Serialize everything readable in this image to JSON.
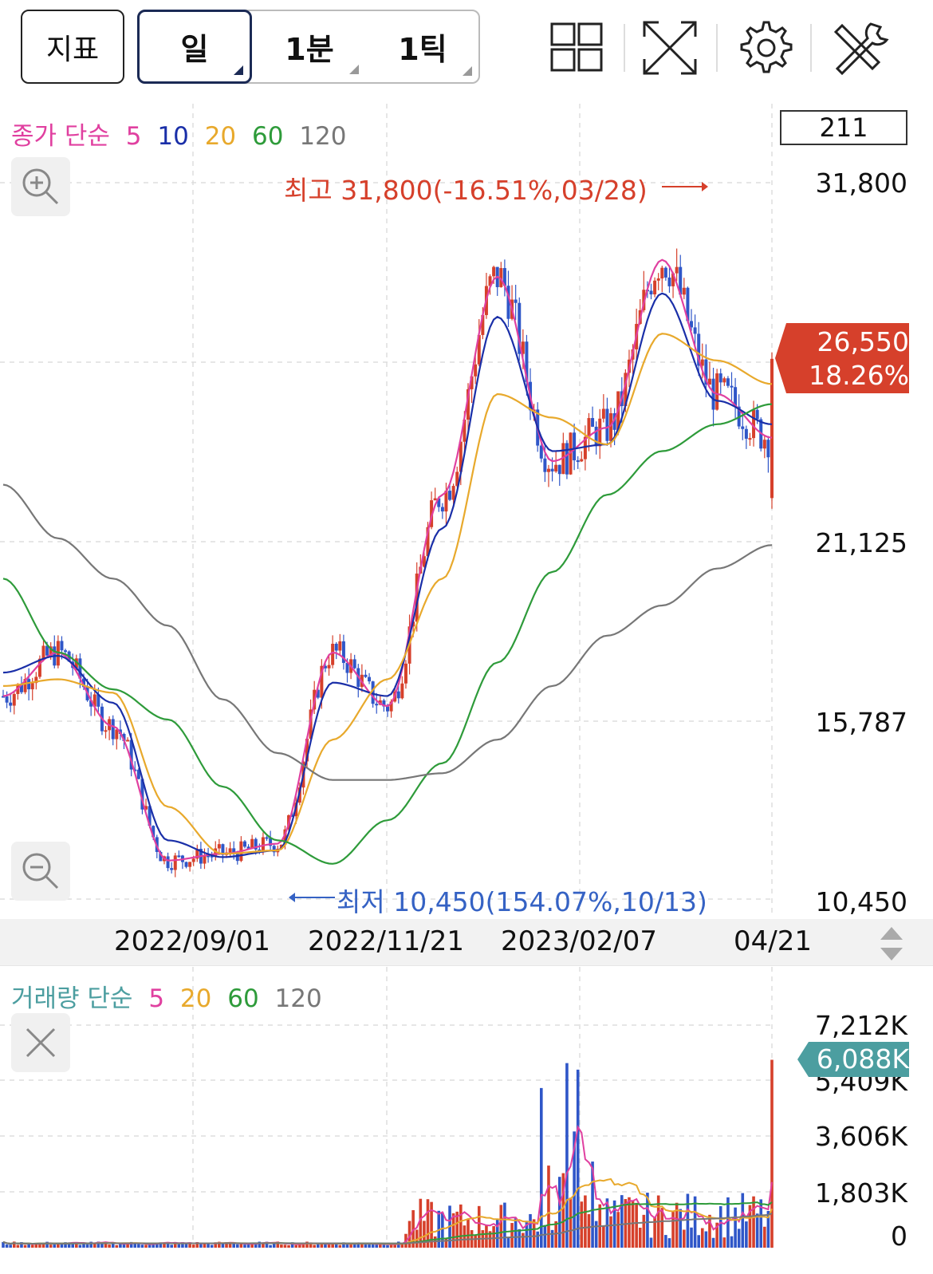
{
  "toolbar": {
    "indicator_label": "지표",
    "periods": [
      "일",
      "1분",
      "1틱"
    ],
    "icons": [
      "grid-layout-icon",
      "fullscreen-expand-icon",
      "gear-icon",
      "tools-icon"
    ]
  },
  "price_legend": {
    "label": "종가 단순",
    "ma": [
      {
        "period": "5",
        "color": "#e040a0"
      },
      {
        "period": "10",
        "color": "#1a2fa8"
      },
      {
        "period": "20",
        "color": "#e8a92c"
      },
      {
        "period": "60",
        "color": "#2e9b3a"
      },
      {
        "period": "120",
        "color": "#777777"
      }
    ]
  },
  "volume_legend": {
    "label": "거래량 단순",
    "ma": [
      {
        "period": "5",
        "color": "#e040a0"
      },
      {
        "period": "20",
        "color": "#e8a92c"
      },
      {
        "period": "60",
        "color": "#2e9b3a"
      },
      {
        "period": "120",
        "color": "#777777"
      }
    ]
  },
  "count_box": "211",
  "current": {
    "price": "26,550",
    "change": "18.26%",
    "volume": "6,088K"
  },
  "annotations": {
    "high": "최고 31,800(-16.51%,03/28)",
    "low": "최저 10,450(154.07%,10/13)"
  },
  "colors": {
    "up": "#d6402b",
    "down": "#2f56c8",
    "volume_tag": "#4c9ea0"
  },
  "chart_data": [
    {
      "type": "line",
      "title": "",
      "x": [
        "2022/09/01",
        "2022/11/21",
        "2023/02/07",
        "04/21"
      ],
      "y_ticks": [
        "31,800",
        "21,125",
        "15,787",
        "10,450"
      ],
      "ylim": [
        10450,
        31800
      ],
      "grid": true,
      "series": [
        {
          "name": "5",
          "approx_values": [
            16500,
            17800,
            15600,
            11600,
            11800,
            12100,
            17800,
            16200,
            22500,
            29000,
            23500,
            24500,
            29500,
            25500,
            24200
          ]
        },
        {
          "name": "10",
          "approx_values": [
            17200,
            17700,
            16300,
            12200,
            11700,
            11900,
            16900,
            16500,
            21500,
            27800,
            23800,
            24000,
            28500,
            25300,
            24600
          ]
        },
        {
          "name": "20",
          "approx_values": [
            16800,
            17000,
            16600,
            13200,
            11800,
            11900,
            15200,
            17000,
            20000,
            25500,
            24800,
            24000,
            27300,
            26500,
            25800
          ]
        },
        {
          "name": "60",
          "approx_values": [
            20000,
            17800,
            16700,
            15800,
            13800,
            12200,
            11500,
            12800,
            14500,
            17500,
            20200,
            22500,
            23800,
            24600,
            25200
          ]
        },
        {
          "name": "120",
          "approx_values": [
            22800,
            21200,
            20000,
            18600,
            16400,
            14800,
            14000,
            14000,
            14200,
            15200,
            16800,
            18300,
            19200,
            20300,
            21000
          ]
        }
      ],
      "candles": "daily OHLC, red = up, blue = down"
    },
    {
      "type": "bar",
      "title": "",
      "y_ticks": [
        "7,212K",
        "5,409K",
        "3,606K",
        "1,803K",
        "0"
      ],
      "ylim": [
        0,
        7212
      ],
      "last_value": 6088
    }
  ],
  "x_labels": [
    "2022/09/01",
    "2022/11/21",
    "2023/02/07",
    "04/21"
  ],
  "price_ticks": [
    "31,800",
    "21,125",
    "15,787",
    "10,450"
  ],
  "volume_ticks": [
    "7,212K",
    "5,409K",
    "3,606K",
    "1,803K",
    "0"
  ]
}
